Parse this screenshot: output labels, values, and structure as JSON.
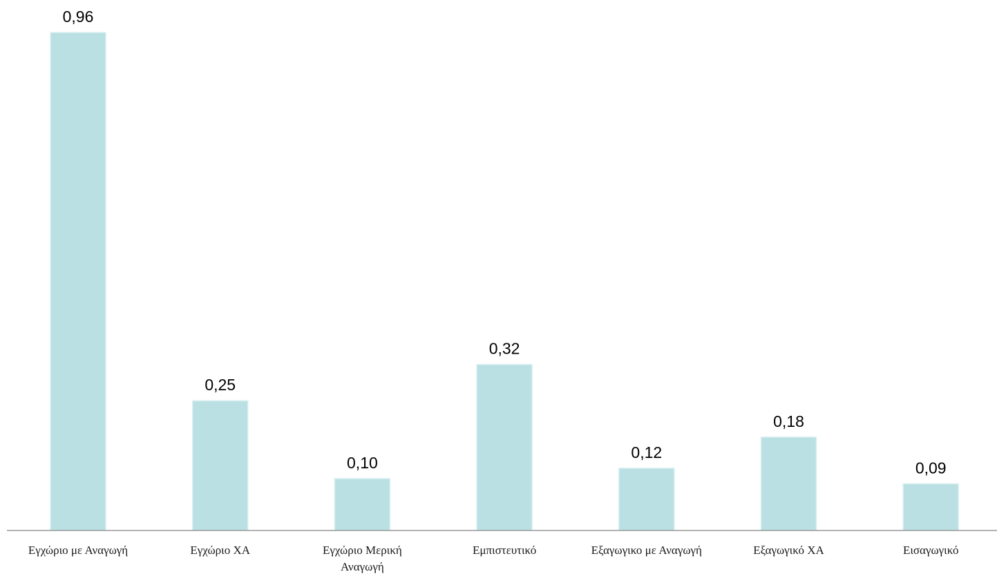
{
  "chart_data": {
    "type": "bar",
    "title": "",
    "xlabel": "",
    "ylabel": "",
    "ylim": [
      0,
      1.0
    ],
    "grid": false,
    "legend": "none",
    "bar_color": "#bae0e3",
    "categories": [
      [
        "Εγχώριο με Αναγωγή"
      ],
      [
        "Εγχώριο ΧΑ"
      ],
      [
        "Εγχώριο Μερική",
        "Αναγωγή"
      ],
      [
        "Εμπιστευτικό"
      ],
      [
        "Εξαγωγικο με Αναγωγή"
      ],
      [
        "Εξαγωγικό ΧΑ"
      ],
      [
        "Εισαγωγικό"
      ]
    ],
    "values": [
      0.96,
      0.25,
      0.1,
      0.32,
      0.12,
      0.18,
      0.09
    ],
    "value_labels": [
      "0,96",
      "0,25",
      "0,10",
      "0,32",
      "0,12",
      "0,18",
      "0,09"
    ]
  }
}
